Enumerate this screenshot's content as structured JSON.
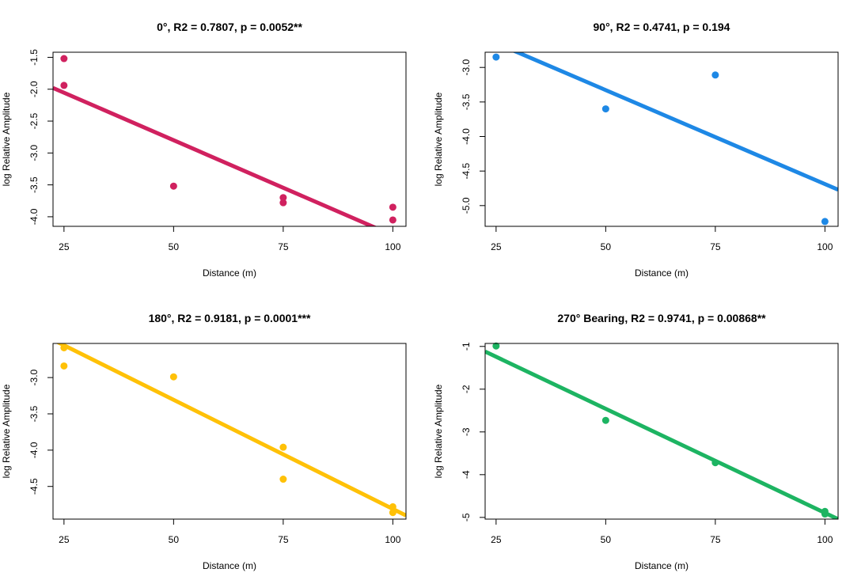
{
  "chart_data": [
    {
      "type": "scatter",
      "title": "0°, R2 = 0.7807, p = 0.0052**",
      "xlabel": "Distance (m)",
      "ylabel": "log Relative Amplitude",
      "xlim": [
        22.5,
        103
      ],
      "ylim": [
        -4.15,
        -1.42
      ],
      "xticks": [
        25,
        50,
        75,
        100
      ],
      "yticks": [
        -1.5,
        -2.0,
        -2.5,
        -3.0,
        -3.5,
        -4.0
      ],
      "ytick_labels": [
        "-1.5",
        "-2.0",
        "-2.5",
        "-3.0",
        "-3.5",
        "-4.0"
      ],
      "color": "#D0215F",
      "points": {
        "x": [
          25,
          25,
          50,
          75,
          75,
          100,
          100
        ],
        "y": [
          -1.52,
          -1.94,
          -3.52,
          -3.7,
          -3.78,
          -3.85,
          -4.05
        ]
      },
      "fit_line": {
        "x": [
          22.5,
          103
        ],
        "y": [
          -1.98,
          -4.38
        ]
      },
      "grid": false,
      "legend": "none"
    },
    {
      "type": "scatter",
      "title": "90°, R2 = 0.4741, p = 0.194",
      "xlabel": "Distance (m)",
      "ylabel": "log Relative Amplitude",
      "xlim": [
        22.5,
        103
      ],
      "ylim": [
        -5.3,
        -2.78
      ],
      "xticks": [
        25,
        50,
        75,
        100
      ],
      "yticks": [
        -3.0,
        -3.5,
        -4.0,
        -4.5,
        -5.0
      ],
      "ytick_labels": [
        "-3.0",
        "-3.5",
        "-4.0",
        "-4.5",
        "-5.0"
      ],
      "color": "#1E88E5",
      "points": {
        "x": [
          25,
          50,
          75,
          100
        ],
        "y": [
          -2.85,
          -3.6,
          -3.11,
          -5.23
        ]
      },
      "fit_line": {
        "x": [
          22.5,
          103
        ],
        "y": [
          -2.58,
          -4.77
        ]
      },
      "grid": false,
      "legend": "none"
    },
    {
      "type": "scatter",
      "title": "180°, R2 = 0.9181, p = 0.0001***",
      "xlabel": "Distance (m)",
      "ylabel": "log Relative Amplitude",
      "xlim": [
        22.5,
        103
      ],
      "ylim": [
        -4.95,
        -2.53
      ],
      "xticks": [
        25,
        50,
        75,
        100
      ],
      "yticks": [
        -3.0,
        -3.5,
        -4.0,
        -4.5
      ],
      "ytick_labels": [
        "-3.0",
        "-3.5",
        "-4.0",
        "-4.5"
      ],
      "color": "#FFC107",
      "points": {
        "x": [
          25,
          25,
          50,
          75,
          75,
          100,
          100
        ],
        "y": [
          -2.59,
          -2.84,
          -2.99,
          -3.96,
          -4.4,
          -4.78,
          -4.86
        ]
      },
      "fit_line": {
        "x": [
          22.5,
          103
        ],
        "y": [
          -2.48,
          -4.9
        ]
      },
      "grid": false,
      "legend": "none"
    },
    {
      "type": "scatter",
      "title": "270° Bearing, R2 = 0.9741, p = 0.00868**",
      "xlabel": "Distance (m)",
      "ylabel": "log Relative Amplitude",
      "xlim": [
        22.5,
        103
      ],
      "ylim": [
        -5.04,
        -0.93
      ],
      "xticks": [
        25,
        50,
        75,
        100
      ],
      "yticks": [
        -1,
        -2,
        -3,
        -4,
        -5
      ],
      "ytick_labels": [
        "-1",
        "-2",
        "-3",
        "-4",
        "-5"
      ],
      "color": "#1DB462",
      "points": {
        "x": [
          25,
          50,
          75,
          100,
          100
        ],
        "y": [
          -0.99,
          -2.73,
          -3.72,
          -4.86,
          -4.92
        ]
      },
      "fit_line": {
        "x": [
          22.5,
          103
        ],
        "y": [
          -1.12,
          -5.04
        ]
      },
      "grid": false,
      "legend": "none"
    }
  ]
}
